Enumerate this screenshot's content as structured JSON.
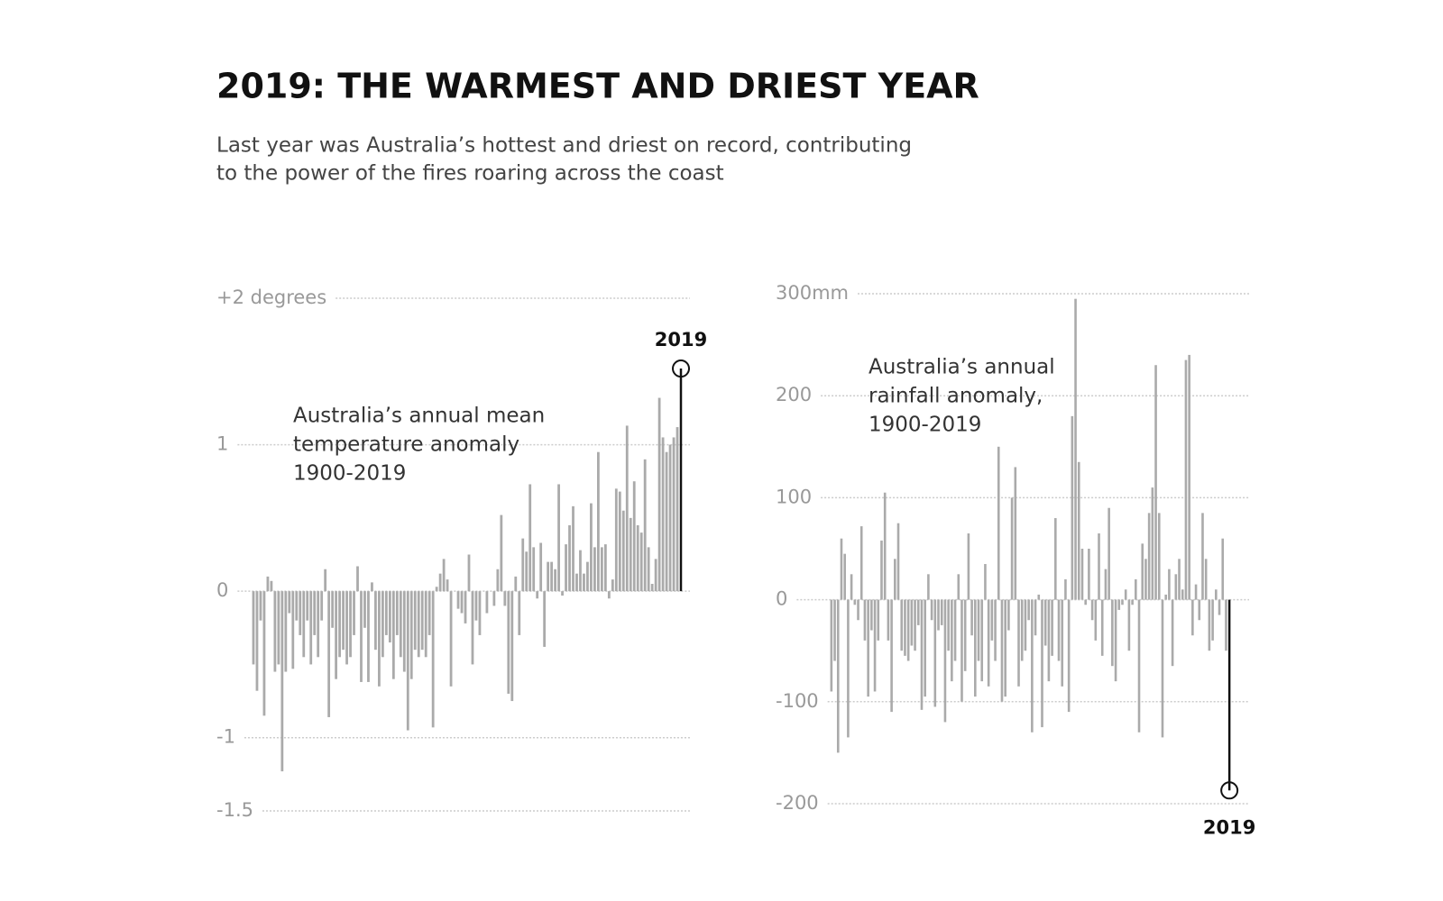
{
  "header": {
    "title": "2019: THE WARMEST AND DRIEST YEAR",
    "subtitle": [
      "Last year was Australia’s hottest and driest on record, contributing",
      "to the power of the fires roaring across the coast"
    ]
  },
  "chart_data": [
    {
      "type": "bar",
      "annotation": [
        "Australia’s annual mean",
        "temperature anomaly",
        "1900-2019"
      ],
      "color": "#aaaaaa",
      "highlight_color": "#111111",
      "ylim": [
        -1.5,
        2
      ],
      "yticks": [
        -1.5,
        -1,
        0,
        1,
        {
          "value": 2,
          "label": "+2 degrees"
        }
      ],
      "categories": [
        null,
        null,
        null,
        null,
        null,
        null,
        null,
        null,
        null,
        null,
        null,
        null,
        null,
        null,
        null,
        null,
        null,
        null,
        null,
        null,
        null,
        null,
        null,
        null,
        null,
        null,
        null,
        null,
        null,
        null,
        null,
        null,
        null,
        null,
        null,
        null,
        null,
        null,
        null,
        null,
        null,
        null,
        null,
        null,
        null,
        null,
        null,
        null,
        null,
        null,
        null,
        null,
        null,
        null,
        null,
        null,
        null,
        null,
        null,
        null,
        null,
        null,
        null,
        null,
        null,
        null,
        null,
        null,
        null,
        null,
        null,
        null,
        null,
        null,
        null,
        null,
        null,
        null,
        null,
        null,
        null,
        null,
        null,
        null,
        null,
        null,
        null,
        null,
        null,
        null,
        null,
        null,
        null,
        null,
        null,
        null,
        null,
        null,
        null,
        null,
        null,
        null,
        null,
        null,
        null,
        null,
        null,
        null,
        null,
        null,
        null,
        null,
        null,
        null,
        null,
        null,
        null,
        null,
        null,
        "2019"
      ],
      "values": [
        -0.5,
        -0.68,
        -0.2,
        -0.85,
        0.1,
        0.07,
        -0.55,
        -0.5,
        -1.23,
        -0.55,
        -0.15,
        -0.53,
        -0.2,
        -0.3,
        -0.45,
        -0.2,
        -0.5,
        -0.3,
        -0.45,
        -0.2,
        0.15,
        -0.86,
        -0.25,
        -0.6,
        -0.45,
        -0.4,
        -0.5,
        -0.45,
        -0.3,
        0.17,
        -0.62,
        -0.25,
        -0.62,
        0.06,
        -0.4,
        -0.65,
        -0.45,
        -0.3,
        -0.35,
        -0.6,
        -0.3,
        -0.45,
        -0.55,
        -0.95,
        -0.6,
        -0.4,
        -0.45,
        -0.4,
        -0.45,
        -0.3,
        -0.93,
        0.03,
        0.12,
        0.22,
        0.08,
        -0.65,
        0,
        -0.12,
        -0.15,
        -0.22,
        0.25,
        -0.5,
        -0.2,
        -0.3,
        0,
        -0.15,
        0,
        -0.1,
        0.15,
        0.52,
        -0.1,
        -0.7,
        -0.75,
        0.1,
        -0.3,
        0.36,
        0.27,
        0.73,
        0.3,
        -0.05,
        0.33,
        -0.38,
        0.2,
        0.2,
        0.15,
        0.73,
        -0.03,
        0.32,
        0.45,
        0.58,
        0.12,
        0.28,
        0.12,
        0.2,
        0.6,
        0.3,
        0.95,
        0.3,
        0.32,
        -0.05,
        0.08,
        0.7,
        0.68,
        0.55,
        1.13,
        0.5,
        0.75,
        0.45,
        0.4,
        0.9,
        0.3,
        0.05,
        0.22,
        1.32,
        1.05,
        0.95,
        1.0,
        1.05,
        1.12,
        1.52
      ]
    },
    {
      "type": "bar",
      "annotation": [
        "Australia’s annual",
        "rainfall anomaly,",
        "1900-2019"
      ],
      "color": "#aaaaaa",
      "highlight_color": "#111111",
      "ylim": [
        -200,
        300
      ],
      "yticks": [
        -200,
        -100,
        0,
        100,
        200,
        {
          "value": 300,
          "label": "300mm"
        }
      ],
      "categories": [
        null,
        null,
        null,
        null,
        null,
        null,
        null,
        null,
        null,
        null,
        null,
        null,
        null,
        null,
        null,
        null,
        null,
        null,
        null,
        null,
        null,
        null,
        null,
        null,
        null,
        null,
        null,
        null,
        null,
        null,
        null,
        null,
        null,
        null,
        null,
        null,
        null,
        null,
        null,
        null,
        null,
        null,
        null,
        null,
        null,
        null,
        null,
        null,
        null,
        null,
        null,
        null,
        null,
        null,
        null,
        null,
        null,
        null,
        null,
        null,
        null,
        null,
        null,
        null,
        null,
        null,
        null,
        null,
        null,
        null,
        null,
        null,
        null,
        null,
        null,
        null,
        null,
        null,
        null,
        null,
        null,
        null,
        null,
        null,
        null,
        null,
        null,
        null,
        null,
        null,
        null,
        null,
        null,
        null,
        null,
        null,
        null,
        null,
        null,
        null,
        null,
        null,
        null,
        null,
        null,
        null,
        null,
        null,
        null,
        null,
        null,
        null,
        null,
        null,
        null,
        null,
        null,
        null,
        null,
        "2019"
      ],
      "values": [
        -90,
        -60,
        -150,
        60,
        45,
        -135,
        25,
        -5,
        -20,
        72,
        -40,
        -95,
        -30,
        -90,
        -40,
        58,
        105,
        -40,
        -110,
        40,
        75,
        -50,
        -55,
        -60,
        -45,
        -50,
        -25,
        -108,
        -95,
        25,
        -20,
        -105,
        -30,
        -25,
        -120,
        -50,
        -80,
        -60,
        25,
        -100,
        -70,
        65,
        -35,
        -95,
        -60,
        -80,
        35,
        -85,
        -40,
        -60,
        150,
        -100,
        -95,
        -30,
        100,
        130,
        -85,
        -60,
        -50,
        -20,
        -130,
        -35,
        5,
        -125,
        -45,
        -80,
        -55,
        80,
        -60,
        -85,
        20,
        -110,
        180,
        295,
        135,
        50,
        -5,
        50,
        -20,
        -40,
        65,
        -55,
        30,
        90,
        -65,
        -80,
        -10,
        -5,
        10,
        -50,
        -5,
        20,
        -130,
        55,
        40,
        85,
        110,
        230,
        85,
        -135,
        5,
        30,
        -65,
        25,
        40,
        10,
        235,
        240,
        -35,
        15,
        -20,
        85,
        40,
        -50,
        -40,
        10,
        -15,
        60,
        -50,
        -187
      ]
    }
  ]
}
